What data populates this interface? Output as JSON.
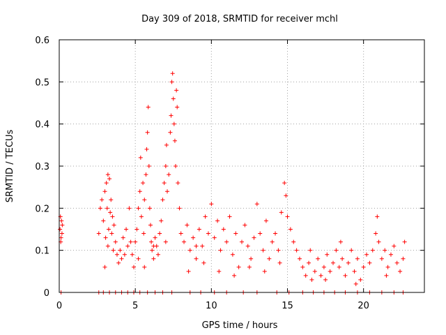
{
  "chart_data": {
    "type": "scatter",
    "title": "Day 309 of 2018, SRMTID for receiver mchl",
    "xlabel": "GPS time / hours",
    "ylabel": "SRMTID / TECUs",
    "xlim": [
      0,
      24
    ],
    "ylim": [
      0,
      0.6
    ],
    "xticks": [
      0,
      5,
      10,
      15,
      20
    ],
    "yticks": [
      0,
      0.1,
      0.2,
      0.3,
      0.4,
      0.5,
      0.6
    ],
    "xtick_labels": [
      "0",
      "5",
      "10",
      "15",
      "20"
    ],
    "ytick_labels": [
      "0",
      "0.1",
      "0.2",
      "0.3",
      "0.4",
      "0.5",
      "0.6"
    ],
    "grid": true,
    "marker": "+",
    "color": "#ff0000",
    "series": [
      {
        "name": "SRMTID",
        "points": [
          [
            0.05,
            0.15
          ],
          [
            0.08,
            0.18
          ],
          [
            0.12,
            0.13
          ],
          [
            0.15,
            0.17
          ],
          [
            0.18,
            0.14
          ],
          [
            0.1,
            0.12
          ],
          [
            0.2,
            0.16
          ],
          [
            0.12,
            0.0
          ],
          [
            2.6,
            0.14
          ],
          [
            2.7,
            0.2
          ],
          [
            2.8,
            0.22
          ],
          [
            2.9,
            0.17
          ],
          [
            3.0,
            0.24
          ],
          [
            3.05,
            0.13
          ],
          [
            3.1,
            0.26
          ],
          [
            3.15,
            0.2
          ],
          [
            3.2,
            0.28
          ],
          [
            3.25,
            0.15
          ],
          [
            3.3,
            0.27
          ],
          [
            3.35,
            0.19
          ],
          [
            3.4,
            0.22
          ],
          [
            3.45,
            0.14
          ],
          [
            3.5,
            0.18
          ],
          [
            3.55,
            0.1
          ],
          [
            3.6,
            0.16
          ],
          [
            3.7,
            0.12
          ],
          [
            3.8,
            0.09
          ],
          [
            3.9,
            0.07
          ],
          [
            4.0,
            0.1
          ],
          [
            4.1,
            0.08
          ],
          [
            4.2,
            0.13
          ],
          [
            4.3,
            0.09
          ],
          [
            4.4,
            0.15
          ],
          [
            4.5,
            0.11
          ],
          [
            4.6,
            0.2
          ],
          [
            4.7,
            0.12
          ],
          [
            4.8,
            0.09
          ],
          [
            4.9,
            0.06
          ],
          [
            3.0,
            0.06
          ],
          [
            3.2,
            0.11
          ],
          [
            5.0,
            0.12
          ],
          [
            5.1,
            0.15
          ],
          [
            5.2,
            0.2
          ],
          [
            5.3,
            0.24
          ],
          [
            5.35,
            0.32
          ],
          [
            5.4,
            0.18
          ],
          [
            5.5,
            0.26
          ],
          [
            5.55,
            0.14
          ],
          [
            5.6,
            0.22
          ],
          [
            5.7,
            0.28
          ],
          [
            5.75,
            0.34
          ],
          [
            5.8,
            0.38
          ],
          [
            5.85,
            0.44
          ],
          [
            5.9,
            0.3
          ],
          [
            5.95,
            0.2
          ],
          [
            6.0,
            0.16
          ],
          [
            6.05,
            0.12
          ],
          [
            6.1,
            0.1
          ],
          [
            6.2,
            0.08
          ],
          [
            6.3,
            0.13
          ],
          [
            6.4,
            0.11
          ],
          [
            6.5,
            0.09
          ],
          [
            6.6,
            0.14
          ],
          [
            6.7,
            0.17
          ],
          [
            6.8,
            0.22
          ],
          [
            6.9,
            0.26
          ],
          [
            7.0,
            0.3
          ],
          [
            7.05,
            0.35
          ],
          [
            7.1,
            0.24
          ],
          [
            7.2,
            0.28
          ],
          [
            7.3,
            0.38
          ],
          [
            7.35,
            0.42
          ],
          [
            7.4,
            0.5
          ],
          [
            7.45,
            0.52
          ],
          [
            7.5,
            0.46
          ],
          [
            7.55,
            0.4
          ],
          [
            7.6,
            0.36
          ],
          [
            7.65,
            0.3
          ],
          [
            7.7,
            0.48
          ],
          [
            7.75,
            0.44
          ],
          [
            7.8,
            0.26
          ],
          [
            7.9,
            0.2
          ],
          [
            5.2,
            0.08
          ],
          [
            5.6,
            0.06
          ],
          [
            6.2,
            0.11
          ],
          [
            7.0,
            0.12
          ],
          [
            8.0,
            0.14
          ],
          [
            8.2,
            0.12
          ],
          [
            8.4,
            0.16
          ],
          [
            8.6,
            0.1
          ],
          [
            8.8,
            0.13
          ],
          [
            9.0,
            0.08
          ],
          [
            9.2,
            0.15
          ],
          [
            9.4,
            0.11
          ],
          [
            9.6,
            0.18
          ],
          [
            9.8,
            0.14
          ],
          [
            10.0,
            0.21
          ],
          [
            10.2,
            0.13
          ],
          [
            10.4,
            0.17
          ],
          [
            10.6,
            0.1
          ],
          [
            10.8,
            0.15
          ],
          [
            11.0,
            0.12
          ],
          [
            11.2,
            0.18
          ],
          [
            11.4,
            0.09
          ],
          [
            11.6,
            0.14
          ],
          [
            11.8,
            0.06
          ],
          [
            12.0,
            0.12
          ],
          [
            12.2,
            0.16
          ],
          [
            12.4,
            0.11
          ],
          [
            12.6,
            0.08
          ],
          [
            12.8,
            0.13
          ],
          [
            13.0,
            0.21
          ],
          [
            13.2,
            0.14
          ],
          [
            13.4,
            0.1
          ],
          [
            13.6,
            0.17
          ],
          [
            13.8,
            0.08
          ],
          [
            14.0,
            0.12
          ],
          [
            14.2,
            0.14
          ],
          [
            14.4,
            0.1
          ],
          [
            14.6,
            0.19
          ],
          [
            14.8,
            0.26
          ],
          [
            14.9,
            0.23
          ],
          [
            15.0,
            0.18
          ],
          [
            15.2,
            0.15
          ],
          [
            15.4,
            0.12
          ],
          [
            15.6,
            0.1
          ],
          [
            9.0,
            0.11
          ],
          [
            9.5,
            0.07
          ],
          [
            10.5,
            0.05
          ],
          [
            11.5,
            0.04
          ],
          [
            12.5,
            0.06
          ],
          [
            13.5,
            0.05
          ],
          [
            14.5,
            0.07
          ],
          [
            8.5,
            0.05
          ],
          [
            15.8,
            0.08
          ],
          [
            16.0,
            0.06
          ],
          [
            16.2,
            0.04
          ],
          [
            16.4,
            0.07
          ],
          [
            16.6,
            0.03
          ],
          [
            16.8,
            0.05
          ],
          [
            17.0,
            0.08
          ],
          [
            17.2,
            0.04
          ],
          [
            17.4,
            0.06
          ],
          [
            17.6,
            0.09
          ],
          [
            17.8,
            0.05
          ],
          [
            18.0,
            0.07
          ],
          [
            18.2,
            0.1
          ],
          [
            18.4,
            0.06
          ],
          [
            18.6,
            0.08
          ],
          [
            18.8,
            0.04
          ],
          [
            19.0,
            0.07
          ],
          [
            19.2,
            0.1
          ],
          [
            19.4,
            0.05
          ],
          [
            19.6,
            0.08
          ],
          [
            19.8,
            0.03
          ],
          [
            20.0,
            0.06
          ],
          [
            20.2,
            0.09
          ],
          [
            20.4,
            0.07
          ],
          [
            20.6,
            0.1
          ],
          [
            20.8,
            0.14
          ],
          [
            20.9,
            0.18
          ],
          [
            21.0,
            0.12
          ],
          [
            21.2,
            0.08
          ],
          [
            21.4,
            0.1
          ],
          [
            21.6,
            0.06
          ],
          [
            21.8,
            0.09
          ],
          [
            22.0,
            0.11
          ],
          [
            22.2,
            0.07
          ],
          [
            22.4,
            0.05
          ],
          [
            22.6,
            0.08
          ],
          [
            22.7,
            0.12
          ],
          [
            16.5,
            0.1
          ],
          [
            17.5,
            0.03
          ],
          [
            18.5,
            0.12
          ],
          [
            19.5,
            0.02
          ],
          [
            21.5,
            0.04
          ],
          [
            2.6,
            0.0
          ],
          [
            2.9,
            0.0
          ],
          [
            3.3,
            0.0
          ],
          [
            3.7,
            0.0
          ],
          [
            4.1,
            0.0
          ],
          [
            4.5,
            0.0
          ],
          [
            4.9,
            0.0
          ],
          [
            5.3,
            0.0
          ],
          [
            5.8,
            0.0
          ],
          [
            6.3,
            0.0
          ],
          [
            6.8,
            0.0
          ],
          [
            7.4,
            0.0
          ],
          [
            8.6,
            0.0
          ],
          [
            9.3,
            0.0
          ],
          [
            10.2,
            0.0
          ],
          [
            11.0,
            0.0
          ],
          [
            12.1,
            0.0
          ],
          [
            13.0,
            0.0
          ],
          [
            14.3,
            0.0
          ],
          [
            15.1,
            0.0
          ],
          [
            16.0,
            0.0
          ],
          [
            16.7,
            0.0
          ],
          [
            17.4,
            0.0
          ],
          [
            18.1,
            0.0
          ],
          [
            18.8,
            0.0
          ],
          [
            19.6,
            0.0
          ],
          [
            20.4,
            0.0
          ],
          [
            21.2,
            0.0
          ],
          [
            22.0,
            0.0
          ],
          [
            22.6,
            0.0
          ]
        ]
      }
    ]
  }
}
